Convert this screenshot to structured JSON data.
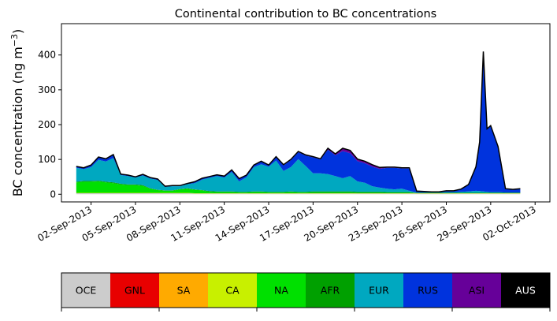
{
  "chart_data": {
    "type": "area",
    "stacked": true,
    "title": "Continental contribution to BC concentrations",
    "xlabel": "",
    "ylabel": "BC concentration (ng m",
    "ylabel_sup": "−3",
    "ylabel_close": ")",
    "x_ticks": [
      "02-Sep-2013",
      "05-Sep-2013",
      "08-Sep-2013",
      "11-Sep-2013",
      "14-Sep-2013",
      "17-Sep-2013",
      "20-Sep-2013",
      "23-Sep-2013",
      "26-Sep-2013",
      "29-Sep-2013",
      "02-Oct-2013"
    ],
    "xlim": [
      "2013-08-31",
      "2013-10-03"
    ],
    "y_ticks": [
      0,
      100,
      200,
      300,
      400
    ],
    "ylim": [
      -22,
      490
    ],
    "grid": false,
    "x": [
      "2013-09-01 00:00",
      "2013-09-01 12:00",
      "2013-09-02 00:00",
      "2013-09-02 12:00",
      "2013-09-03 00:00",
      "2013-09-03 12:00",
      "2013-09-04 00:00",
      "2013-09-04 12:00",
      "2013-09-05 00:00",
      "2013-09-05 12:00",
      "2013-09-06 00:00",
      "2013-09-06 12:00",
      "2013-09-07 00:00",
      "2013-09-07 12:00",
      "2013-09-08 00:00",
      "2013-09-08 12:00",
      "2013-09-09 00:00",
      "2013-09-09 12:00",
      "2013-09-10 00:00",
      "2013-09-10 12:00",
      "2013-09-11 00:00",
      "2013-09-11 12:00",
      "2013-09-12 00:00",
      "2013-09-12 12:00",
      "2013-09-13 00:00",
      "2013-09-13 12:00",
      "2013-09-14 00:00",
      "2013-09-14 12:00",
      "2013-09-15 00:00",
      "2013-09-15 12:00",
      "2013-09-16 00:00",
      "2013-09-16 12:00",
      "2013-09-17 00:00",
      "2013-09-17 12:00",
      "2013-09-18 00:00",
      "2013-09-18 12:00",
      "2013-09-19 00:00",
      "2013-09-19 12:00",
      "2013-09-20 00:00",
      "2013-09-20 12:00",
      "2013-09-21 00:00",
      "2013-09-21 12:00",
      "2013-09-22 00:00",
      "2013-09-22 12:00",
      "2013-09-23 00:00",
      "2013-09-23 12:00",
      "2013-09-24 00:00",
      "2013-09-24 12:00",
      "2013-09-25 00:00",
      "2013-09-25 12:00",
      "2013-09-26 00:00",
      "2013-09-26 12:00",
      "2013-09-27 00:00",
      "2013-09-27 12:00",
      "2013-09-28 00:00",
      "2013-09-28 06:00",
      "2013-09-28 12:00",
      "2013-09-28 18:00",
      "2013-09-29 00:00",
      "2013-09-29 12:00",
      "2013-09-30 00:00",
      "2013-09-30 12:00",
      "2013-10-01 00:00"
    ],
    "series": [
      {
        "name": "OCE",
        "color": "#cccccc",
        "values": [
          3,
          3,
          3,
          3,
          3,
          3,
          3,
          3,
          3,
          3,
          3,
          3,
          3,
          3,
          3,
          3,
          2,
          2,
          2,
          2,
          2,
          2,
          2,
          2,
          2,
          2,
          2,
          2,
          2,
          2,
          2,
          2,
          2,
          2,
          2,
          2,
          2,
          2,
          2,
          2,
          2,
          2,
          2,
          2,
          2,
          2,
          2,
          2,
          2,
          2,
          2,
          2,
          2,
          2,
          2,
          2,
          2,
          2,
          2,
          2,
          2,
          2,
          2
        ]
      },
      {
        "name": "GNL",
        "color": "#e80000",
        "values": [
          0,
          0,
          0,
          0,
          0,
          0,
          0,
          0,
          0,
          0,
          0,
          0,
          0,
          0,
          0,
          0,
          0,
          0,
          0,
          0,
          0,
          0,
          0,
          0,
          0,
          0,
          0,
          0,
          0,
          0,
          0,
          0,
          0,
          0,
          0,
          0,
          0,
          0,
          0,
          0,
          0,
          0,
          0,
          0,
          0,
          0,
          0,
          0,
          0,
          0,
          0,
          0,
          0,
          0,
          0,
          0,
          0,
          0,
          0,
          0,
          0,
          0,
          0
        ]
      },
      {
        "name": "SA",
        "color": "#ffaa00",
        "values": [
          0,
          0,
          0,
          0,
          0,
          0,
          0,
          0,
          0,
          0,
          0,
          0,
          0,
          0,
          0,
          0,
          0,
          0,
          0,
          0,
          0,
          0,
          0,
          0,
          0,
          0,
          0,
          0,
          0,
          0,
          0,
          0,
          0,
          0,
          0,
          0,
          0,
          0,
          0,
          0,
          0,
          0,
          0,
          0,
          0,
          0,
          0,
          0,
          0,
          0,
          0,
          0,
          0,
          0,
          0,
          0,
          0,
          0,
          0,
          0,
          0,
          0,
          0
        ]
      },
      {
        "name": "CA",
        "color": "#c8f000",
        "values": [
          1,
          1,
          1,
          1,
          1,
          1,
          1,
          1,
          1,
          1,
          1,
          1,
          1,
          1,
          1,
          1,
          1,
          1,
          1,
          1,
          1,
          1,
          1,
          1,
          1,
          1,
          1,
          1,
          1,
          1,
          1,
          1,
          1,
          1,
          1,
          1,
          1,
          1,
          1,
          1,
          1,
          1,
          1,
          1,
          1,
          1,
          1,
          1,
          1,
          1,
          1,
          1,
          1,
          1,
          1,
          1,
          1,
          1,
          1,
          1,
          1,
          1,
          1
        ]
      },
      {
        "name": "NA",
        "color": "#00e000",
        "values": [
          30,
          32,
          32,
          33,
          30,
          28,
          24,
          22,
          22,
          20,
          12,
          8,
          6,
          6,
          10,
          12,
          10,
          8,
          4,
          3,
          3,
          3,
          2,
          2,
          3,
          3,
          2,
          2,
          2,
          3,
          2,
          2,
          2,
          2,
          2,
          2,
          2,
          2,
          1,
          1,
          1,
          1,
          1,
          1,
          1,
          1,
          0,
          0,
          0,
          0,
          0,
          0,
          0,
          0,
          0,
          0,
          0,
          0,
          0,
          0,
          0,
          0,
          0
        ]
      },
      {
        "name": "AFR",
        "color": "#00a000",
        "values": [
          2,
          2,
          2,
          2,
          2,
          2,
          2,
          2,
          2,
          2,
          1,
          1,
          1,
          1,
          1,
          1,
          1,
          1,
          2,
          2,
          2,
          2,
          2,
          2,
          2,
          2,
          2,
          2,
          2,
          2,
          2,
          2,
          3,
          3,
          3,
          3,
          3,
          3,
          3,
          3,
          3,
          3,
          2,
          2,
          2,
          2,
          1,
          1,
          1,
          1,
          1,
          1,
          1,
          1,
          1,
          1,
          1,
          1,
          1,
          1,
          1,
          1,
          1
        ]
      },
      {
        "name": "EUR",
        "color": "#00a8c0",
        "values": [
          40,
          34,
          40,
          60,
          58,
          70,
          25,
          24,
          20,
          28,
          28,
          28,
          10,
          12,
          8,
          12,
          18,
          30,
          38,
          44,
          40,
          56,
          30,
          42,
          70,
          78,
          72,
          90,
          60,
          70,
          94,
          74,
          52,
          52,
          50,
          44,
          38,
          44,
          30,
          26,
          16,
          12,
          10,
          8,
          10,
          4,
          1,
          1,
          1,
          1,
          2,
          2,
          3,
          4,
          6,
          5,
          4,
          3,
          2,
          2,
          1,
          1,
          1
        ]
      },
      {
        "name": "RUS",
        "color": "#0033dd",
        "values": [
          4,
          4,
          6,
          8,
          8,
          10,
          3,
          3,
          2,
          3,
          3,
          3,
          2,
          2,
          2,
          2,
          4,
          4,
          4,
          4,
          4,
          6,
          8,
          6,
          6,
          8,
          4,
          10,
          16,
          20,
          20,
          30,
          46,
          40,
          70,
          60,
          78,
          66,
          58,
          56,
          56,
          54,
          60,
          62,
          58,
          64,
          4,
          3,
          2,
          2,
          4,
          4,
          8,
          20,
          68,
          140,
          400,
          180,
          190,
          130,
          10,
          8,
          10
        ]
      },
      {
        "name": "ASI",
        "color": "#660099",
        "values": [
          0,
          0,
          0,
          0,
          0,
          0,
          0,
          0,
          0,
          0,
          0,
          0,
          0,
          0,
          0,
          0,
          0,
          0,
          0,
          0,
          0,
          0,
          0,
          0,
          0,
          1,
          1,
          1,
          2,
          2,
          2,
          2,
          2,
          2,
          4,
          4,
          8,
          8,
          6,
          6,
          6,
          4,
          2,
          2,
          2,
          2,
          0,
          0,
          0,
          0,
          0,
          0,
          0,
          0,
          1,
          1,
          2,
          1,
          1,
          1,
          1,
          1,
          1
        ]
      },
      {
        "name": "AUS",
        "color": "#000000",
        "values": [
          0,
          0,
          0,
          0,
          0,
          0,
          0,
          0,
          0,
          0,
          0,
          0,
          0,
          0,
          0,
          0,
          0,
          0,
          0,
          0,
          0,
          0,
          0,
          0,
          0,
          0,
          0,
          0,
          0,
          0,
          0,
          0,
          0,
          0,
          0,
          0,
          0,
          0,
          0,
          0,
          0,
          0,
          0,
          0,
          0,
          0,
          0,
          0,
          0,
          0,
          0,
          0,
          0,
          0,
          0,
          0,
          0,
          0,
          0,
          0,
          0,
          0,
          0
        ]
      }
    ],
    "total_line_color": "#000000",
    "legend": {
      "placement": "bottom",
      "entries": [
        {
          "label": "OCE",
          "color": "#cccccc",
          "text_color": "#000000"
        },
        {
          "label": "GNL",
          "color": "#e80000",
          "text_color": "#000000"
        },
        {
          "label": "SA",
          "color": "#ffaa00",
          "text_color": "#000000"
        },
        {
          "label": "CA",
          "color": "#c8f000",
          "text_color": "#000000"
        },
        {
          "label": "NA",
          "color": "#00e000",
          "text_color": "#000000"
        },
        {
          "label": "AFR",
          "color": "#00a000",
          "text_color": "#000000"
        },
        {
          "label": "EUR",
          "color": "#00a8c0",
          "text_color": "#000000"
        },
        {
          "label": "RUS",
          "color": "#0033dd",
          "text_color": "#000000"
        },
        {
          "label": "ASI",
          "color": "#660099",
          "text_color": "#000000"
        },
        {
          "label": "AUS",
          "color": "#000000",
          "text_color": "#ffffff"
        }
      ]
    }
  }
}
